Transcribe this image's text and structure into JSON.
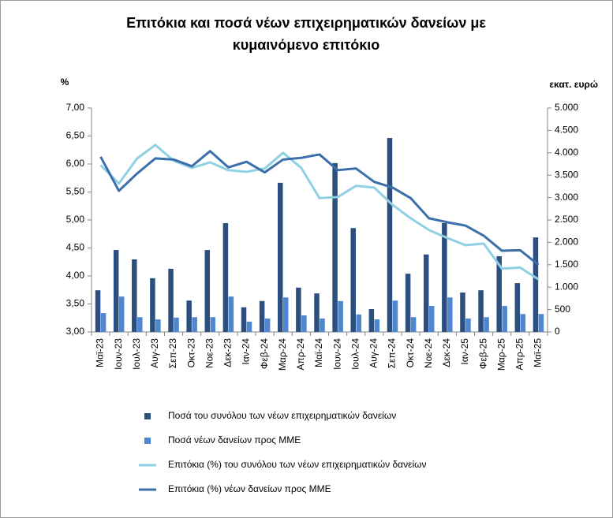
{
  "chart_data": {
    "type": "combo",
    "title": [
      "Επιτόκια και ποσά νέων επιχειρηματικών δανείων με",
      "κυμαινόμενο επιτόκιο"
    ],
    "ylabel": "%",
    "y2label": "εκατ. ευρώ",
    "categories": [
      "Μαϊ-23",
      "Ιουν-23",
      "Ιουλ-23",
      "Αυγ-23",
      "Σεπ-23",
      "Οκτ-23",
      "Νοε-23",
      "Δεκ-23",
      "Ιαν-24",
      "Φεβ-24",
      "Μαρ-24",
      "Απρ-24",
      "Μαϊ-24",
      "Ιουν-24",
      "Ιουλ-24",
      "Αυγ-24",
      "Σεπ-24",
      "Οκτ-24",
      "Νοε-24",
      "Δεκ-24",
      "Ιαν-25",
      "Φεβ-25",
      "Μαρ-25",
      "Απρ-25",
      "Μαϊ-25"
    ],
    "series": [
      {
        "name": "Ποσά του συνόλου των νέων επιχειρηματικών δανείων",
        "type": "bar",
        "axis": "y2",
        "color": "#2b4f7e",
        "values": [
          930,
          1830,
          1620,
          1200,
          1410,
          700,
          1830,
          2430,
          550,
          690,
          3330,
          990,
          860,
          3770,
          2320,
          510,
          4330,
          1300,
          1730,
          2430,
          880,
          930,
          1690,
          1090,
          2110
        ]
      },
      {
        "name": "Ποσά νέων δανείων προς ΜΜΕ",
        "type": "bar",
        "axis": "y2",
        "color": "#4f86d0",
        "values": [
          420,
          790,
          330,
          280,
          320,
          330,
          330,
          790,
          230,
          300,
          770,
          370,
          300,
          690,
          390,
          280,
          700,
          330,
          580,
          770,
          300,
          330,
          580,
          400,
          400
        ]
      },
      {
        "name": "Επιτόκια (%) του συνόλου των νέων επιχειρηματικών δανείων",
        "type": "line",
        "color": "#8fd0e2",
        "values": [
          5.98,
          5.65,
          6.1,
          6.34,
          6.06,
          5.93,
          6.03,
          5.89,
          5.86,
          5.92,
          6.2,
          5.93,
          5.39,
          5.41,
          5.61,
          5.58,
          5.27,
          5.03,
          4.82,
          4.68,
          4.55,
          4.58,
          4.13,
          4.15,
          3.94
        ]
      },
      {
        "name": "Επιτόκια (%) νέων δανείων προς ΜΜΕ",
        "type": "line",
        "color": "#3a6fa9",
        "values": [
          6.13,
          5.52,
          5.83,
          6.1,
          6.08,
          5.96,
          6.23,
          5.94,
          6.04,
          5.85,
          6.08,
          6.11,
          6.17,
          5.89,
          5.92,
          5.68,
          5.58,
          5.39,
          5.03,
          4.96,
          4.9,
          4.72,
          4.45,
          4.46,
          4.2
        ]
      }
    ],
    "ylim": [
      3,
      7
    ],
    "yticks": [
      {
        "value": 3,
        "label": "3,00"
      },
      {
        "value": 3.5,
        "label": "3,50"
      },
      {
        "value": 4,
        "label": "4,00"
      },
      {
        "value": 4.5,
        "label": "4,50"
      },
      {
        "value": 5,
        "label": "5,00"
      },
      {
        "value": 5.5,
        "label": "5,50"
      },
      {
        "value": 6,
        "label": "6,00"
      },
      {
        "value": 6.5,
        "label": "6,50"
      },
      {
        "value": 7,
        "label": "7,00"
      }
    ],
    "y2lim": [
      0,
      5000
    ],
    "y2ticks": [
      0,
      500,
      {
        "value": 1000,
        "label": "1.000"
      },
      {
        "value": 1500,
        "label": "1.500"
      },
      {
        "value": 2000,
        "label": "2.000"
      },
      {
        "value": 2500,
        "label": "2.500"
      },
      {
        "value": 3000,
        "label": "3.000"
      },
      {
        "value": 3500,
        "label": "3.500"
      },
      {
        "value": 4000,
        "label": "4.000"
      },
      {
        "value": 4500,
        "label": "4.500"
      },
      {
        "value": 5000,
        "label": "5.000"
      }
    ],
    "grid": false
  }
}
